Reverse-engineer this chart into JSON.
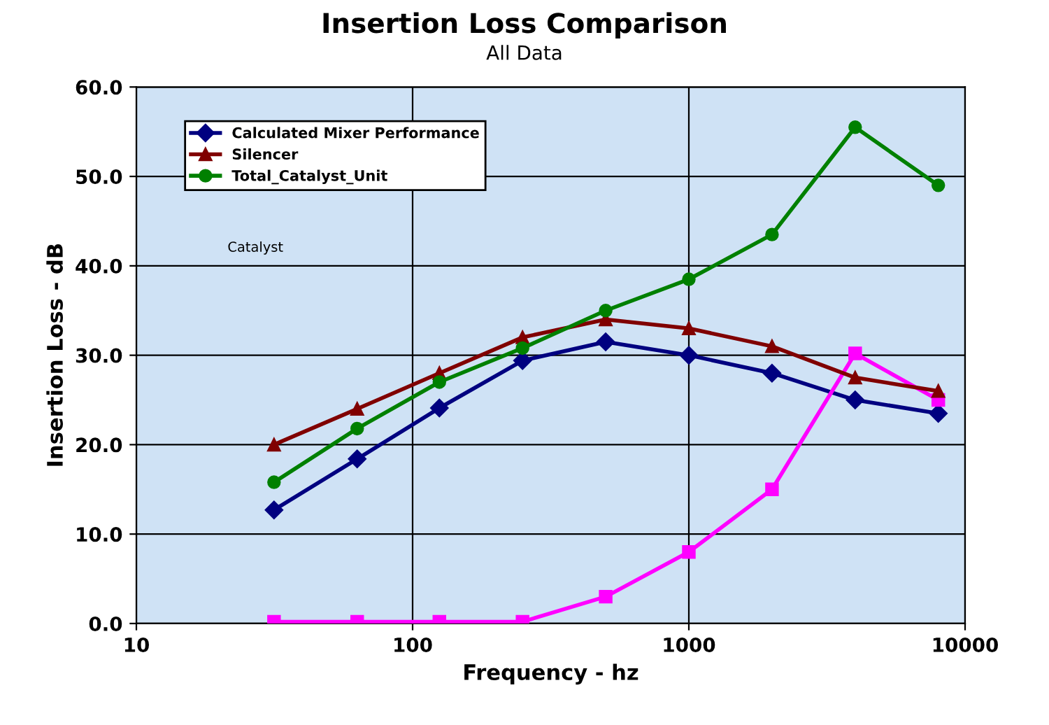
{
  "chart_data": {
    "type": "line",
    "title": "Insertion Loss Comparison",
    "subtitle": "All Data",
    "xlabel": "Frequency - hz",
    "ylabel": "Insertion Loss - dB",
    "x": [
      31.5,
      63,
      125,
      250,
      500,
      1000,
      2000,
      4000,
      8000
    ],
    "series": [
      {
        "name": "Calculated Mixer Performance",
        "color": "#000080",
        "marker": "diamond",
        "values": [
          12.7,
          18.4,
          24.1,
          29.4,
          31.5,
          30.0,
          28.0,
          25.0,
          23.5
        ]
      },
      {
        "color": "#ff00ff",
        "marker": "square",
        "values": [
          0.2,
          0.2,
          0.2,
          0.2,
          3.0,
          8.0,
          15.0,
          30.2,
          25.0
        ]
      },
      {
        "name": "Silencer",
        "color": "#800000",
        "marker": "triangle",
        "values": [
          20.0,
          24.0,
          28.0,
          32.0,
          34.0,
          33.0,
          31.0,
          27.5,
          26.0
        ]
      },
      {
        "name": "Total_Catalyst_Unit",
        "color": "#008000",
        "marker": "circle",
        "values": [
          15.8,
          21.8,
          27.0,
          30.8,
          35.0,
          38.5,
          43.5,
          55.5,
          49.0
        ]
      }
    ],
    "annotations": [
      "Catalyst"
    ],
    "log": "x",
    "xlim": [
      10,
      10000
    ],
    "xticks": [
      10,
      100,
      1000,
      10000
    ],
    "ylim": [
      0,
      60
    ],
    "yticks": [
      {
        "value": 0,
        "label": "0.0"
      },
      {
        "value": 10,
        "label": "10.0"
      },
      {
        "value": 20,
        "label": "20.0"
      },
      {
        "value": 30,
        "label": "30.0"
      },
      {
        "value": 40,
        "label": "40.0"
      },
      {
        "value": 50,
        "label": "50.0"
      },
      {
        "value": 60,
        "label": "60.0"
      }
    ],
    "grid": true,
    "legend": "top left",
    "line_style": "solid"
  }
}
